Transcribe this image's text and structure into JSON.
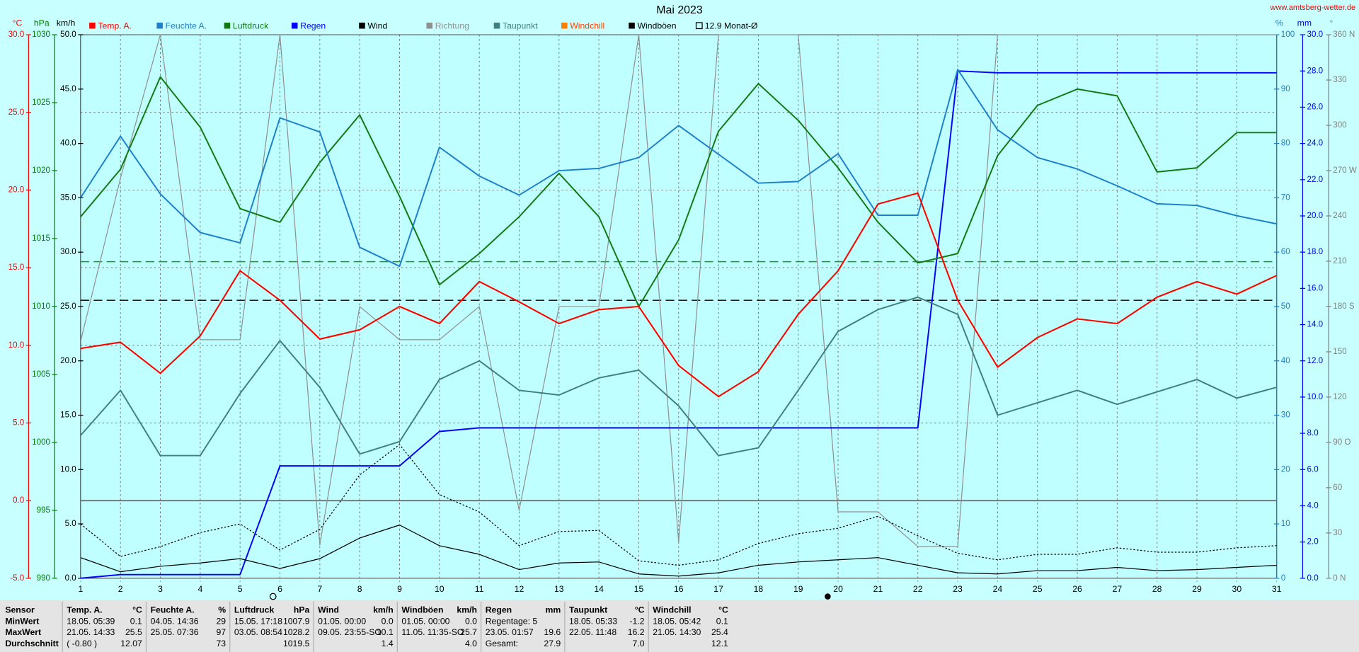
{
  "chart_data": {
    "type": "line",
    "title": "Mai 2023",
    "source": "www.amtsberg-wetter.de",
    "x": [
      1,
      2,
      3,
      4,
      5,
      6,
      7,
      8,
      9,
      10,
      11,
      12,
      13,
      14,
      15,
      16,
      17,
      18,
      19,
      20,
      21,
      22,
      23,
      24,
      25,
      26,
      27,
      28,
      29,
      30,
      31
    ],
    "xlim": [
      1,
      31
    ],
    "grid": true,
    "axes": [
      {
        "unit": "°C",
        "color": "#ff0000",
        "lim": [
          -5,
          30
        ],
        "zero_line": true,
        "grid": true,
        "ticks": [
          {
            "value": -5,
            "label": "-5.0"
          },
          {
            "value": 0,
            "label": "0.0"
          },
          {
            "value": 5,
            "label": "5.0"
          },
          {
            "value": 10,
            "label": "10.0"
          },
          {
            "value": 15,
            "label": "15.0"
          },
          {
            "value": 20,
            "label": "20.0"
          },
          {
            "value": 25,
            "label": "25.0"
          },
          {
            "value": 30,
            "label": "30.0"
          }
        ]
      },
      {
        "unit": "hPa",
        "color": "#008000",
        "lim": [
          990,
          1030
        ],
        "ticks": [
          990,
          995,
          1000,
          1005,
          1010,
          1015,
          1020,
          1025,
          1030
        ]
      },
      {
        "unit": "km/h",
        "color": "#000000",
        "lim": [
          0,
          50
        ],
        "ticks": [
          {
            "value": 0,
            "label": "0.0"
          },
          {
            "value": 5,
            "label": "5.0"
          },
          {
            "value": 10,
            "label": "10.0"
          },
          {
            "value": 15,
            "label": "15.0"
          },
          {
            "value": 20,
            "label": "20.0"
          },
          {
            "value": 25,
            "label": "25.0"
          },
          {
            "value": 30,
            "label": "30.0"
          },
          {
            "value": 35,
            "label": "35.0"
          },
          {
            "value": 40,
            "label": "40.0"
          },
          {
            "value": 45,
            "label": "45.0"
          },
          {
            "value": 50,
            "label": "50.0"
          }
        ]
      },
      {
        "unit": "%",
        "color": "#1e7fcb",
        "lim": [
          0,
          100
        ],
        "ticks": [
          0,
          10,
          20,
          30,
          40,
          50,
          60,
          70,
          80,
          90,
          100
        ]
      },
      {
        "unit": "mm",
        "color": "#0000ff",
        "lim": [
          0,
          30
        ],
        "ticks": [
          {
            "value": 0,
            "label": "0.0"
          },
          {
            "value": 2,
            "label": "2.0"
          },
          {
            "value": 4,
            "label": "4.0"
          },
          {
            "value": 6,
            "label": "6.0"
          },
          {
            "value": 8,
            "label": "8.0"
          },
          {
            "value": 10,
            "label": "10.0"
          },
          {
            "value": 12,
            "label": "12.0"
          },
          {
            "value": 14,
            "label": "14.0"
          },
          {
            "value": 16,
            "label": "16.0"
          },
          {
            "value": 18,
            "label": "18.0"
          },
          {
            "value": 20,
            "label": "20.0"
          },
          {
            "value": 22,
            "label": "22.0"
          },
          {
            "value": 24,
            "label": "24.0"
          },
          {
            "value": 26,
            "label": "26.0"
          },
          {
            "value": 28,
            "label": "28.0"
          },
          {
            "value": 30,
            "label": "30.0"
          }
        ]
      },
      {
        "unit": "°",
        "color": "#808080",
        "lim": [
          0,
          360
        ],
        "ticks": [
          {
            "value": 0,
            "label": "0 N"
          },
          30,
          60,
          {
            "value": 90,
            "label": "90 O"
          },
          120,
          150,
          {
            "value": 180,
            "label": "180 S"
          },
          210,
          240,
          {
            "value": 270,
            "label": "270 W"
          },
          300,
          330,
          {
            "value": 360,
            "label": "360 N"
          }
        ]
      }
    ],
    "series": [
      {
        "name": "Temp. A.",
        "color": "#ff0000",
        "axis": 0,
        "width": 1.6,
        "values": [
          9.8,
          10.2,
          8.2,
          10.6,
          14.8,
          12.9,
          10.4,
          11.0,
          12.5,
          11.4,
          14.1,
          12.8,
          11.4,
          12.3,
          12.5,
          8.7,
          6.7,
          8.3,
          12.0,
          14.8,
          19.1,
          19.8,
          12.9,
          8.6,
          10.5,
          11.7,
          11.4,
          13.1,
          14.1,
          13.3,
          14.5
        ]
      },
      {
        "name": "Feuchte A.",
        "color": "#1e7fcb",
        "axis": 3,
        "width": 1.6,
        "values": [
          70,
          81.3,
          70.7,
          63.6,
          61.7,
          84.7,
          82.1,
          60.9,
          57.4,
          79.3,
          74,
          70.5,
          75,
          75.4,
          77.4,
          83.3,
          78,
          72.7,
          73,
          78.1,
          66.8,
          66.8,
          93.6,
          82.5,
          77.4,
          75.3,
          72.2,
          68.9,
          68.6,
          66.7,
          65.2
        ]
      },
      {
        "name": "Luftdruck",
        "color": "#107a10",
        "axis": 1,
        "width": 1.6,
        "values": [
          1016.6,
          1020.1,
          1026.9,
          1023.2,
          1017.2,
          1016.2,
          1020.6,
          1024.1,
          1018.1,
          1011.6,
          1013.9,
          1016.6,
          1019.8,
          1016.6,
          1010.0,
          1014.9,
          1022.9,
          1026.4,
          1023.7,
          1020.2,
          1016.2,
          1013.2,
          1013.9,
          1021.1,
          1024.8,
          1026.0,
          1025.5,
          1019.9,
          1020.2,
          1022.8,
          1022.8
        ]
      },
      {
        "name": "Regen",
        "color": "#0000ff",
        "axis": 4,
        "width": 1.6,
        "values": [
          0,
          0.2,
          0.2,
          0.2,
          0.2,
          6.2,
          6.2,
          6.2,
          6.2,
          8.1,
          8.3,
          8.3,
          8.3,
          8.3,
          8.3,
          8.3,
          8.3,
          8.3,
          8.3,
          8.3,
          8.3,
          8.3,
          28.0,
          27.9,
          27.9,
          27.9,
          27.9,
          27.9,
          27.9,
          27.9,
          27.9
        ]
      },
      {
        "name": "Wind",
        "color": "#000000",
        "axis": 2,
        "width": 1,
        "values": [
          1.9,
          0.6,
          1.1,
          1.4,
          1.8,
          0.9,
          1.8,
          3.7,
          4.9,
          3.0,
          2.2,
          0.8,
          1.4,
          1.5,
          0.4,
          0.2,
          0.5,
          1.2,
          1.5,
          1.7,
          1.9,
          1.2,
          0.5,
          0.4,
          0.7,
          0.7,
          1.0,
          0.7,
          0.8,
          1.0,
          1.2
        ]
      },
      {
        "name": "Richtung",
        "color": "#909090",
        "axis": 5,
        "width": 1,
        "values": [
          157,
          265,
          360,
          158,
          158,
          360,
          22,
          180,
          158,
          158,
          180,
          45,
          180,
          180,
          360,
          24,
          360,
          360,
          360,
          44,
          44,
          21,
          21,
          360,
          360,
          360,
          360,
          360,
          360,
          360,
          360
        ]
      },
      {
        "name": "Taupunkt",
        "color": "#3f7f7f",
        "axis": 0,
        "width": 1.6,
        "values": [
          4.2,
          7.1,
          2.9,
          2.9,
          6.9,
          10.3,
          7.3,
          3.0,
          3.8,
          7.8,
          9.0,
          7.1,
          6.8,
          7.9,
          8.4,
          6.1,
          2.9,
          3.4,
          7.1,
          10.9,
          12.3,
          13.1,
          12.0,
          5.5,
          6.3,
          7.1,
          6.2,
          7.0,
          7.8,
          6.6,
          7.3
        ]
      },
      {
        "name": "Windchill",
        "color": "#ff8000",
        "axis": 0,
        "width": 1.6,
        "values": [
          9.8,
          10.2,
          8.2,
          10.6,
          14.8,
          12.9,
          10.4,
          11.0,
          12.5,
          11.4,
          14.1,
          12.8,
          11.4,
          12.3,
          12.5,
          8.7,
          6.7,
          8.3,
          12.0,
          14.8,
          19.1,
          19.8,
          12.9,
          8.6,
          10.5,
          11.7,
          11.4,
          13.1,
          14.1,
          13.3,
          14.5
        ]
      },
      {
        "name": "Windböen",
        "color": "#000000",
        "axis": 2,
        "width": 1,
        "dotted": true,
        "values": [
          5.0,
          2.0,
          2.9,
          4.2,
          5.0,
          2.6,
          4.5,
          9.5,
          12.3,
          7.7,
          6.1,
          3.0,
          4.3,
          4.4,
          1.6,
          1.2,
          1.7,
          3.2,
          4.1,
          4.6,
          5.7,
          3.9,
          2.3,
          1.7,
          2.2,
          2.2,
          2.8,
          2.4,
          2.4,
          2.8,
          3.0
        ]
      }
    ],
    "ref_lines": [
      {
        "name": "12.9 Monat-Ø",
        "axis": 0,
        "value": 12.9,
        "color": "#000000"
      },
      {
        "axis": 1,
        "value": 1013.3,
        "color": "#1a9e1a"
      }
    ],
    "draw_order": [
      7,
      5,
      3,
      4,
      8,
      6,
      2,
      1,
      0
    ]
  },
  "stats_table": {
    "header": "Sensor",
    "row_labels": [
      "MinWert",
      "MaxWert",
      "Durchschnitt"
    ],
    "groups": [
      {
        "name": "Temp. A.",
        "unit": "°C",
        "rows": [
          {
            "time": "18.05. 05:39",
            "value": "0.1"
          },
          {
            "time": "21.05. 14:33",
            "value": "25.5"
          },
          {
            "time": "( -0.80 )",
            "value": "12.07"
          }
        ]
      },
      {
        "name": "Feuchte A.",
        "unit": "%",
        "rows": [
          {
            "time": "04.05. 14:36",
            "value": "29"
          },
          {
            "time": "25.05. 07:36",
            "value": "97"
          },
          {
            "value": "73"
          }
        ]
      },
      {
        "name": "Luftdruck",
        "unit": "hPa",
        "rows": [
          {
            "time": "15.05. 17:18",
            "value": "1007.9"
          },
          {
            "time": "03.05. 08:54",
            "value": "1028.2"
          },
          {
            "value": "1019.5"
          }
        ]
      },
      {
        "name": "Wind",
        "unit": "km/h",
        "rows": [
          {
            "time": "01.05. 00:00",
            "value": "0.0"
          },
          {
            "time": "09.05. 23:55-SO",
            "value": "10.1"
          },
          {
            "value": "1.4"
          }
        ]
      },
      {
        "name": "Windböen",
        "unit": "km/h",
        "rows": [
          {
            "time": "01.05. 00:00",
            "value": "0.0"
          },
          {
            "time": "11.05. 11:35-SO",
            "value": "25.7"
          },
          {
            "value": "4.0"
          }
        ]
      },
      {
        "name": "Regen",
        "unit": "mm",
        "rows": [
          {
            "time": "Regentage: 5"
          },
          {
            "time": "23.05. 01:57",
            "value": "19.6"
          },
          {
            "time": "Gesamt:",
            "value": "27.9"
          }
        ]
      },
      {
        "name": "Taupunkt",
        "unit": "°C",
        "rows": [
          {
            "time": "18.05. 05:33",
            "value": "-1.2"
          },
          {
            "time": "22.05. 11:48",
            "value": "16.2"
          },
          {
            "value": "7.0"
          }
        ]
      },
      {
        "name": "Windchill",
        "unit": "°C",
        "rows": [
          {
            "time": "18.05. 05:42",
            "value": "0.1"
          },
          {
            "time": "21.05. 14:30",
            "value": "25.4"
          },
          {
            "value": "12.1"
          }
        ]
      }
    ]
  }
}
